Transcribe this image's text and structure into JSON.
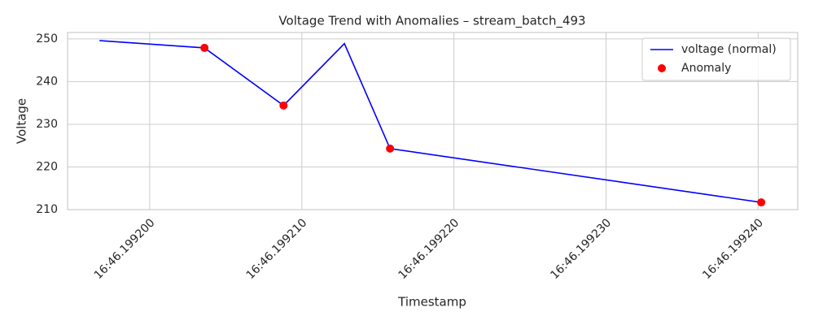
{
  "chart_data": {
    "type": "line",
    "title": "Voltage Trend with Anomalies – stream_batch_493",
    "x_label": "Timestamp",
    "y_label": "Voltage",
    "x": [
      199196.7,
      199203.6,
      199208.8,
      199212.8,
      199215.8,
      199240.2
    ],
    "series": [
      {
        "name": "voltage (normal)",
        "type": "line",
        "color": "#0000ff",
        "values": [
          249.6,
          247.9,
          234.4,
          248.9,
          224.3,
          211.7
        ]
      },
      {
        "name": "Anomaly",
        "type": "scatter",
        "color": "#ff0000",
        "x": [
          199203.6,
          199208.8,
          199215.8,
          199240.2
        ],
        "values": [
          247.9,
          234.4,
          224.3,
          211.7
        ]
      }
    ],
    "xlim": [
      199194.6,
      199242.6
    ],
    "xticks": [
      {
        "value": 199200,
        "label": "16:46.199200"
      },
      {
        "value": 199210,
        "label": "16:46.199210"
      },
      {
        "value": 199220,
        "label": "16:46.199220"
      },
      {
        "value": 199230,
        "label": "16:46.199230"
      },
      {
        "value": 199240,
        "label": "16:46.199240"
      }
    ],
    "ylim": [
      210,
      251.5
    ],
    "yticks": [
      210,
      220,
      230,
      240,
      250
    ],
    "grid": true,
    "legend": "upper right"
  }
}
